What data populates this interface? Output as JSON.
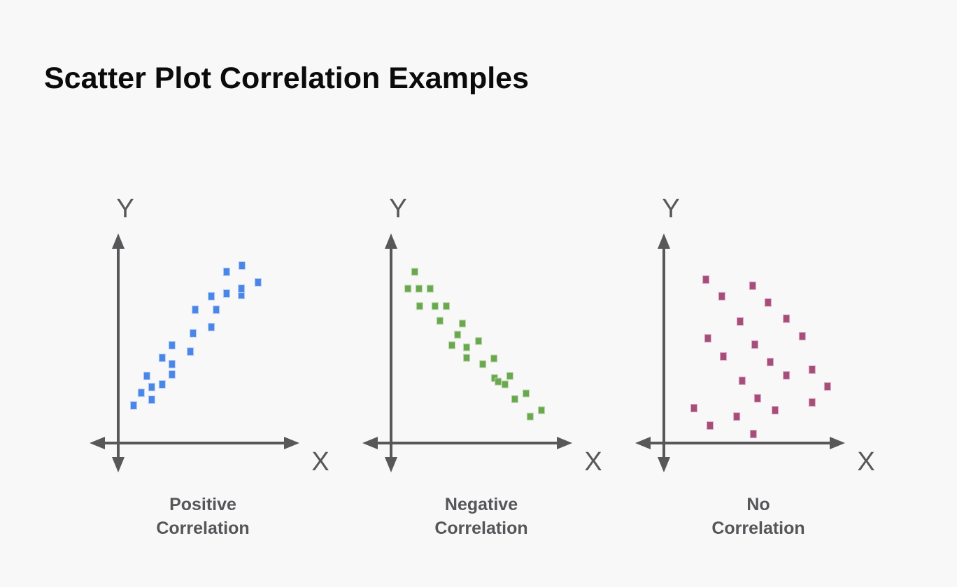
{
  "page": {
    "title": "Scatter Plot Correlation Examples"
  },
  "colors": {
    "background": "#f8f8f8",
    "title": "#0b0b0b",
    "axis": "#58585a",
    "axis_label": "#58585a",
    "caption": "#56565a"
  },
  "chart_data": [
    {
      "type": "scatter",
      "title": "Positive Correlation",
      "caption": {
        "line1": "Positive",
        "line2": "Correlation"
      },
      "xlabel": "X",
      "ylabel": "Y",
      "correlation": "positive",
      "color": "#4a86e8",
      "halo": "#b7cef5",
      "dot": {
        "w": 9,
        "h": 11
      },
      "x_range": [
        0,
        1
      ],
      "y_range": [
        0,
        1
      ],
      "ticks": "none",
      "points": [
        [
          0.085,
          0.179
        ],
        [
          0.127,
          0.239
        ],
        [
          0.185,
          0.206
        ],
        [
          0.185,
          0.266
        ],
        [
          0.158,
          0.319
        ],
        [
          0.243,
          0.279
        ],
        [
          0.297,
          0.326
        ],
        [
          0.297,
          0.375
        ],
        [
          0.243,
          0.405
        ],
        [
          0.297,
          0.465
        ],
        [
          0.398,
          0.435
        ],
        [
          0.413,
          0.522
        ],
        [
          0.514,
          0.551
        ],
        [
          0.425,
          0.634
        ],
        [
          0.541,
          0.634
        ],
        [
          0.514,
          0.698
        ],
        [
          0.598,
          0.711
        ],
        [
          0.68,
          0.704
        ],
        [
          0.68,
          0.734
        ],
        [
          0.598,
          0.814
        ],
        [
          0.683,
          0.844
        ],
        [
          0.772,
          0.764
        ]
      ]
    },
    {
      "type": "scatter",
      "title": "Negative Correlation",
      "caption": {
        "line1": "Negative",
        "line2": "Correlation"
      },
      "xlabel": "X",
      "ylabel": "Y",
      "correlation": "negative",
      "color": "#6aa84f",
      "halo": "#bcd8ae",
      "dot": {
        "w": 9,
        "h": 10
      },
      "x_range": [
        0,
        1
      ],
      "y_range": [
        0,
        1
      ],
      "ticks": "none",
      "points": [
        [
          0.131,
          0.814
        ],
        [
          0.093,
          0.734
        ],
        [
          0.154,
          0.734
        ],
        [
          0.216,
          0.734
        ],
        [
          0.158,
          0.651
        ],
        [
          0.243,
          0.651
        ],
        [
          0.305,
          0.651
        ],
        [
          0.27,
          0.581
        ],
        [
          0.394,
          0.568
        ],
        [
          0.367,
          0.515
        ],
        [
          0.336,
          0.465
        ],
        [
          0.417,
          0.455
        ],
        [
          0.483,
          0.485
        ],
        [
          0.417,
          0.405
        ],
        [
          0.506,
          0.375
        ],
        [
          0.568,
          0.402
        ],
        [
          0.571,
          0.309
        ],
        [
          0.591,
          0.292
        ],
        [
          0.629,
          0.279
        ],
        [
          0.656,
          0.319
        ],
        [
          0.745,
          0.236
        ],
        [
          0.683,
          0.209
        ],
        [
          0.83,
          0.156
        ],
        [
          0.768,
          0.126
        ]
      ]
    },
    {
      "type": "scatter",
      "title": "No Correlation",
      "caption": {
        "line1": "No",
        "line2": "Correlation"
      },
      "xlabel": "X",
      "ylabel": "Y",
      "correlation": "none",
      "color": "#a64d79",
      "halo": "#d9aac3",
      "dot": {
        "w": 9,
        "h": 11
      },
      "x_range": [
        0,
        1
      ],
      "y_range": [
        0,
        1
      ],
      "ticks": "none",
      "points": [
        [
          0.232,
          0.777
        ],
        [
          0.49,
          0.748
        ],
        [
          0.32,
          0.698
        ],
        [
          0.575,
          0.668
        ],
        [
          0.676,
          0.591
        ],
        [
          0.421,
          0.578
        ],
        [
          0.764,
          0.508
        ],
        [
          0.243,
          0.498
        ],
        [
          0.502,
          0.468
        ],
        [
          0.328,
          0.412
        ],
        [
          0.587,
          0.385
        ],
        [
          0.818,
          0.349
        ],
        [
          0.676,
          0.322
        ],
        [
          0.432,
          0.296
        ],
        [
          0.903,
          0.269
        ],
        [
          0.517,
          0.213
        ],
        [
          0.818,
          0.193
        ],
        [
          0.166,
          0.166
        ],
        [
          0.614,
          0.156
        ],
        [
          0.402,
          0.126
        ],
        [
          0.255,
          0.083
        ],
        [
          0.494,
          0.043
        ]
      ]
    }
  ]
}
